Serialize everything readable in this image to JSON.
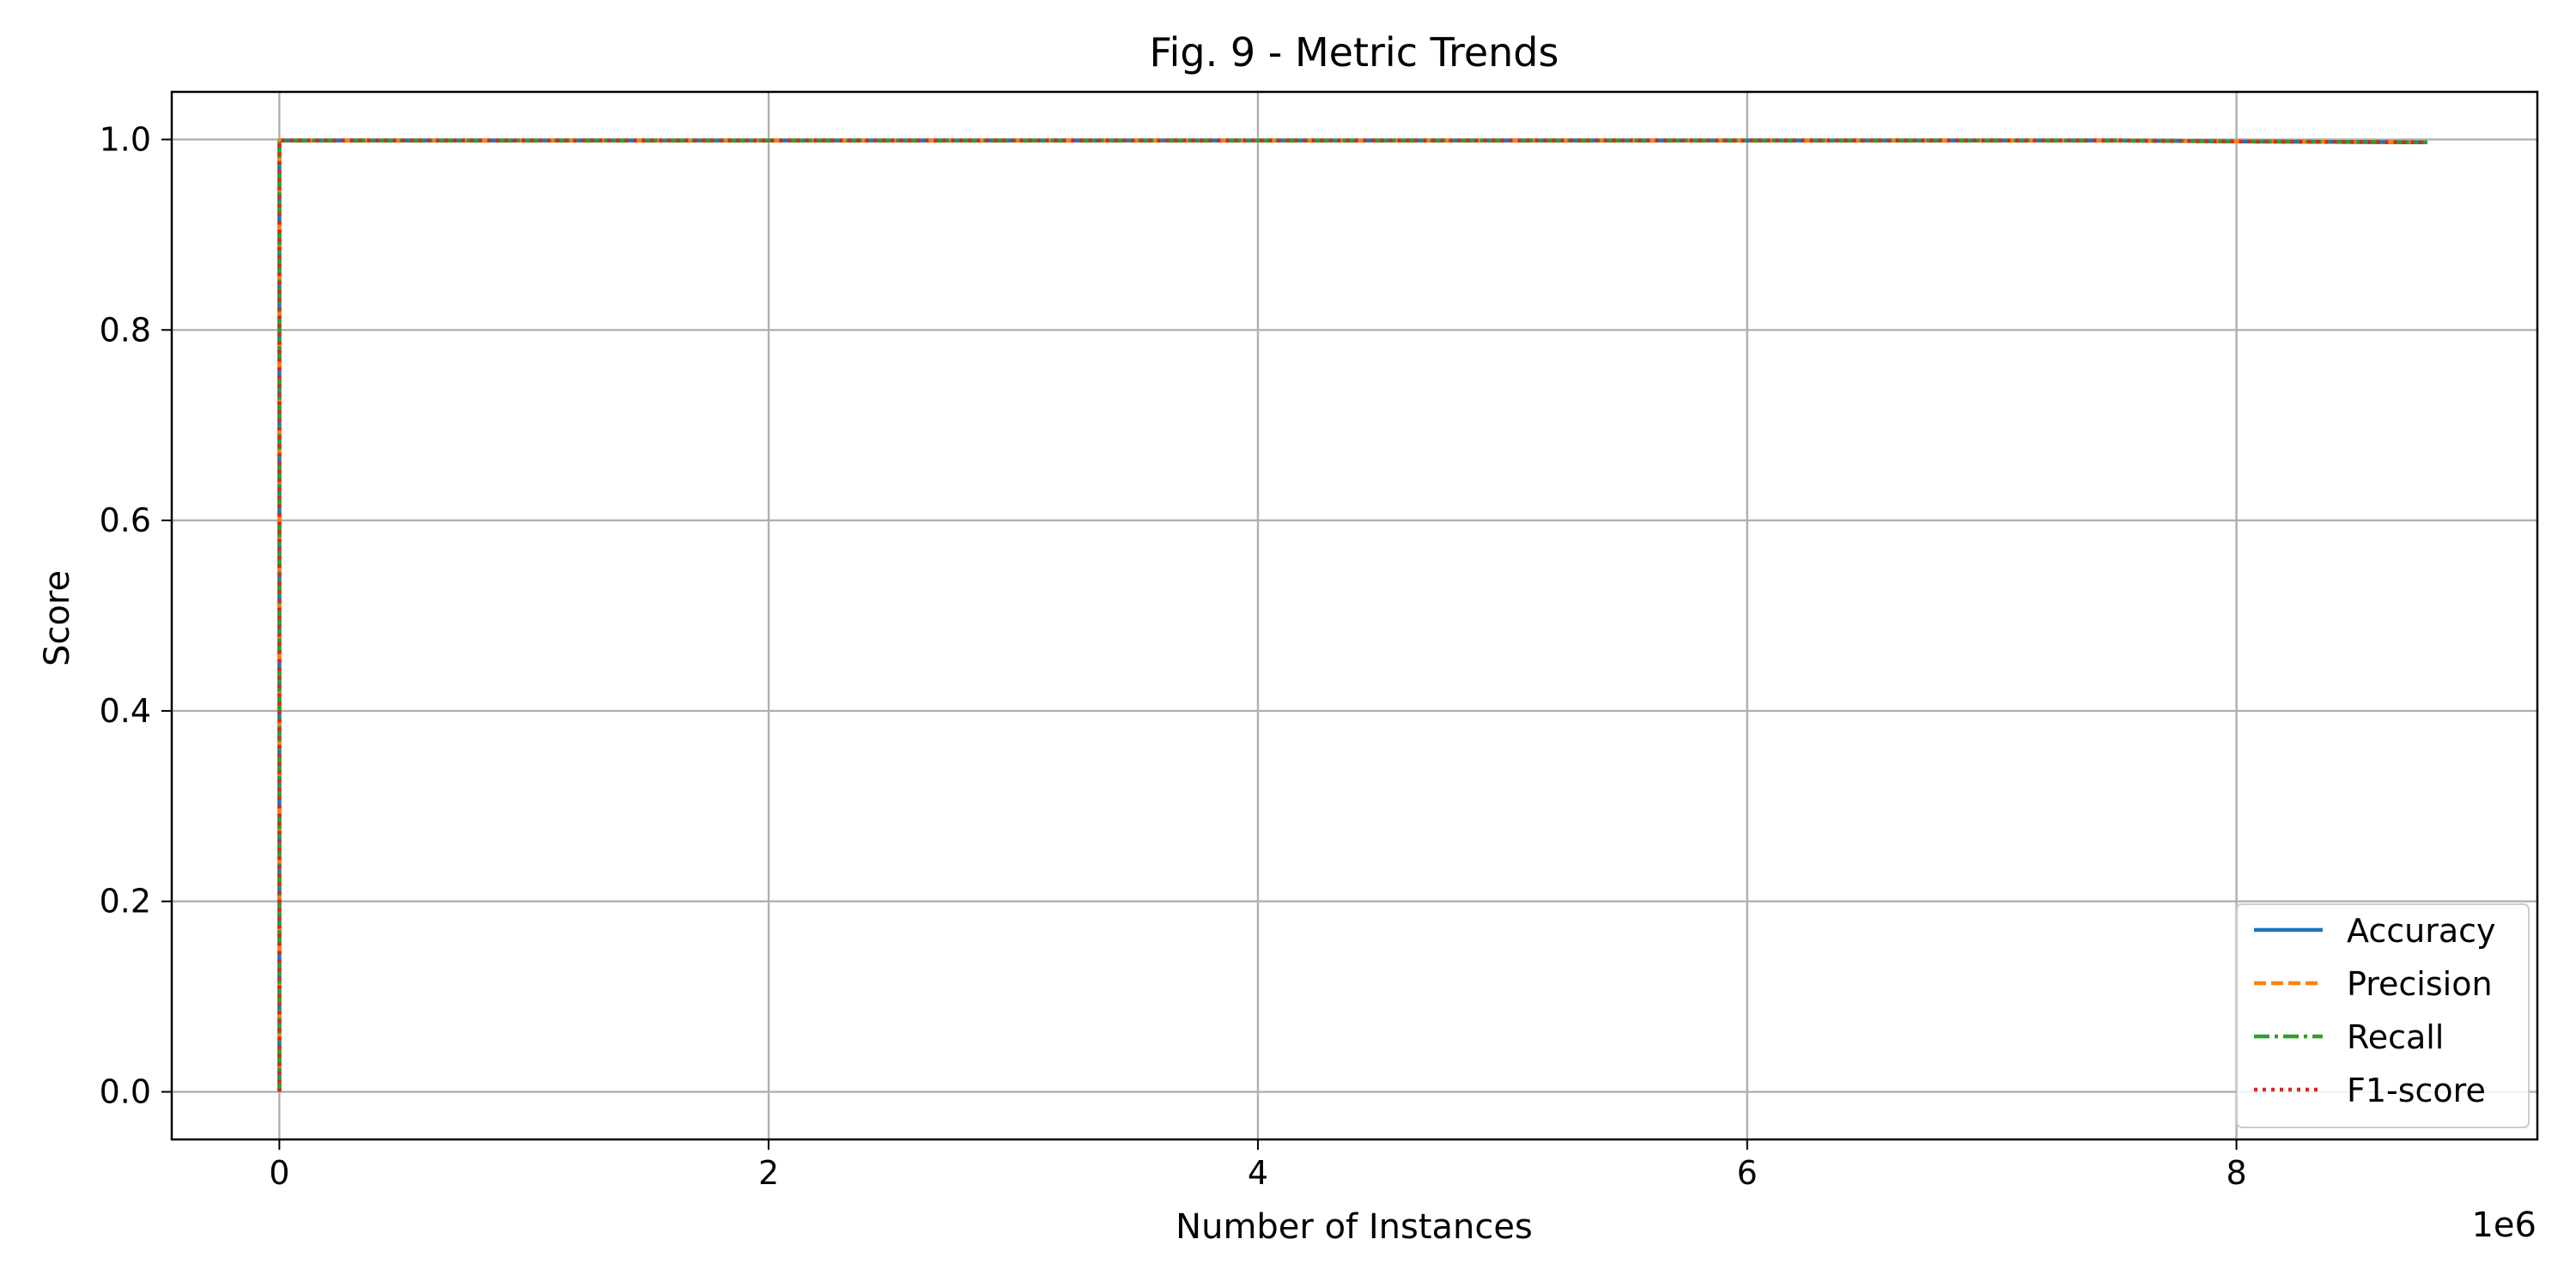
{
  "chart_data": {
    "type": "line",
    "title": "Fig. 9 - Metric Trends",
    "xlabel": "Number of Instances",
    "ylabel": "Score",
    "x_offset_label": "1e6",
    "xlim": [
      -440000,
      9230000
    ],
    "ylim": [
      -0.05,
      1.05
    ],
    "xticks": [
      0,
      2000000,
      4000000,
      6000000,
      8000000
    ],
    "xtick_labels": [
      "0",
      "2",
      "4",
      "6",
      "8"
    ],
    "yticks": [
      0.0,
      0.2,
      0.4,
      0.6,
      0.8,
      1.0
    ],
    "ytick_labels": [
      "0.0",
      "0.2",
      "0.4",
      "0.6",
      "0.8",
      "1.0"
    ],
    "grid": true,
    "legend_position": "lower-right",
    "series": [
      {
        "name": "Accuracy",
        "color": "#1f77b4",
        "style": "solid",
        "x": [
          0,
          0,
          1000000,
          2000000,
          4000000,
          6000000,
          7500000,
          8000000,
          8780000
        ],
        "y": [
          0.0,
          0.999,
          0.999,
          0.999,
          0.999,
          0.999,
          0.999,
          0.998,
          0.997
        ]
      },
      {
        "name": "Precision",
        "color": "#ff7f0e",
        "style": "dashed",
        "x": [
          0,
          0,
          1000000,
          2000000,
          4000000,
          6000000,
          7500000,
          8000000,
          8780000
        ],
        "y": [
          0.0,
          0.999,
          0.999,
          0.999,
          0.999,
          0.999,
          0.999,
          0.998,
          0.997
        ]
      },
      {
        "name": "Recall",
        "color": "#2ca02c",
        "style": "dashdot",
        "x": [
          0,
          0,
          1000000,
          2000000,
          4000000,
          6000000,
          7500000,
          8000000,
          8780000
        ],
        "y": [
          0.0,
          0.999,
          0.999,
          0.999,
          0.999,
          0.999,
          0.999,
          0.998,
          0.997
        ]
      },
      {
        "name": "F1-score",
        "color": "#d62728",
        "style": "dotted",
        "x": [
          0,
          0,
          1000000,
          2000000,
          4000000,
          6000000,
          7500000,
          8000000,
          8780000
        ],
        "y": [
          0.0,
          0.999,
          0.999,
          0.999,
          0.999,
          0.999,
          0.999,
          0.998,
          0.997
        ]
      }
    ]
  }
}
